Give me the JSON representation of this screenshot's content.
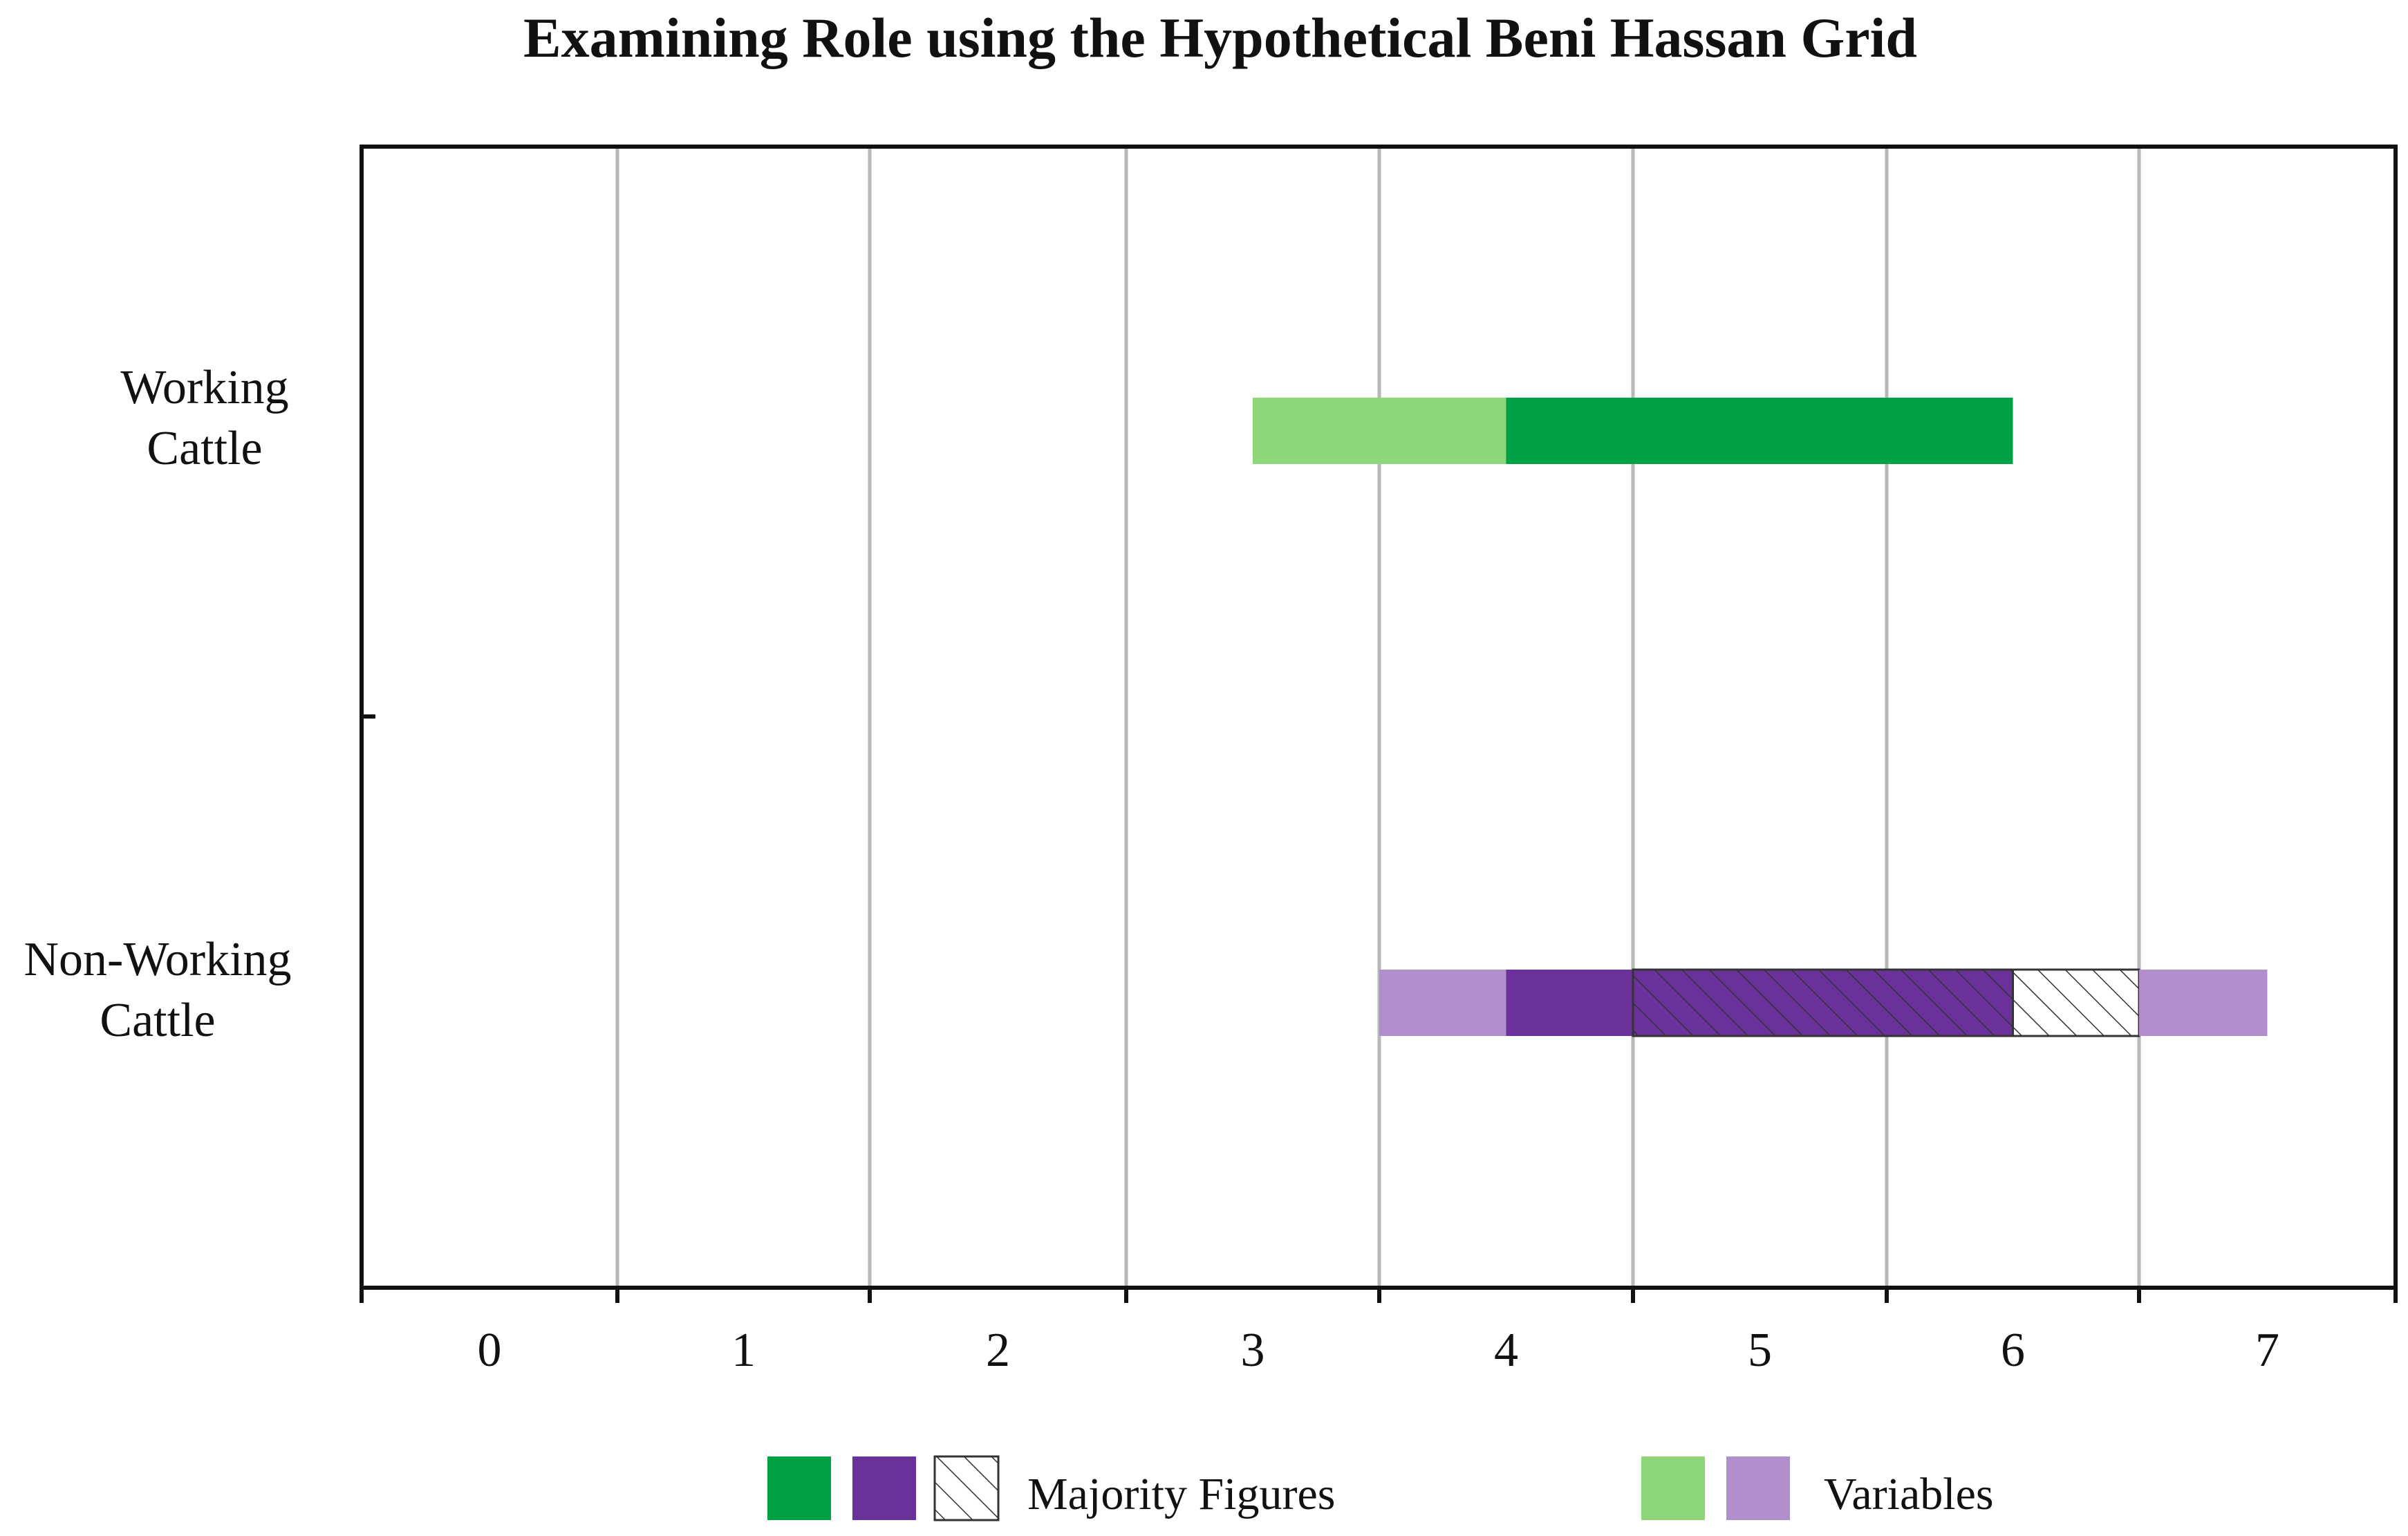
{
  "chart_data": {
    "type": "bar",
    "orientation": "horizontal-range",
    "title": "Examining Role using the Hypothetical Beni Hassan Grid",
    "xlabel": "",
    "ylabel": "",
    "xlim": [
      0,
      7
    ],
    "x_ticks": [
      "0",
      "1",
      "2",
      "3",
      "4",
      "5",
      "6",
      "7"
    ],
    "grid": "vertical lines at column boundaries",
    "categories": [
      "Working\nCattle",
      "Non-Working\nCattle"
    ],
    "colors": {
      "working_majority": "#00a045",
      "working_variable": "#8ed67a",
      "nonworking_majority": "#6b319a",
      "nonworking_variable": "#b08ecb",
      "hatch_stroke": "#333333"
    },
    "series": [
      {
        "category": "Working\nCattle",
        "segments": [
          {
            "role": "variable",
            "fill": "working_variable",
            "hatched": false,
            "start": 3.5,
            "end": 4.5
          },
          {
            "role": "majority",
            "fill": "working_majority",
            "hatched": false,
            "start": 4.5,
            "end": 6.5
          }
        ]
      },
      {
        "category": "Non-Working\nCattle",
        "segments": [
          {
            "role": "variable",
            "fill": "nonworking_variable",
            "hatched": false,
            "start": 4.0,
            "end": 4.5
          },
          {
            "role": "majority",
            "fill": "nonworking_majority",
            "hatched": false,
            "start": 4.5,
            "end": 5.0
          },
          {
            "role": "majority",
            "fill": "nonworking_majority",
            "hatched": true,
            "start": 5.0,
            "end": 6.5
          },
          {
            "role": "majority",
            "fill": "white",
            "hatched": true,
            "start": 6.5,
            "end": 7.0
          },
          {
            "role": "variable",
            "fill": "nonworking_variable",
            "hatched": false,
            "start": 7.0,
            "end": 7.5
          }
        ]
      }
    ],
    "legend": {
      "position": "bottom",
      "entries": [
        {
          "label": "Majority Figures",
          "swatches": [
            "working_majority",
            "nonworking_majority",
            "hatched-white"
          ]
        },
        {
          "label": "Variables",
          "swatches": [
            "working_variable",
            "nonworking_variable"
          ]
        }
      ]
    }
  }
}
